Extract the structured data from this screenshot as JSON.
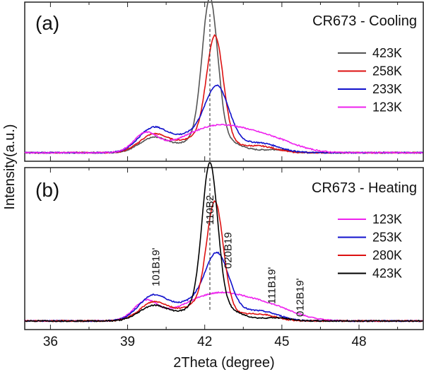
{
  "chart_data": [
    {
      "type": "line",
      "panel_label": "(a)",
      "title": "CR673 - Cooling",
      "legend_position": "right",
      "series": [
        {
          "name": "423K",
          "color": "#555555"
        },
        {
          "name": "258K",
          "color": "#dd1111"
        },
        {
          "name": "233K",
          "color": "#1111cc"
        },
        {
          "name": "123K",
          "color": "#ee22ee"
        }
      ],
      "reference_line_x": 42.2
    },
    {
      "type": "line",
      "panel_label": "(b)",
      "title": "CR673 - Heating",
      "legend_position": "right",
      "series": [
        {
          "name": "123K",
          "color": "#ee22ee"
        },
        {
          "name": "253K",
          "color": "#1111cc"
        },
        {
          "name": "280K",
          "color": "#dd1111"
        },
        {
          "name": "423K",
          "color": "#000000"
        }
      ],
      "reference_line_x": 42.2,
      "annotations": [
        {
          "text": "101B19'",
          "x": 40.1
        },
        {
          "text": "110B2",
          "x": 42.2
        },
        {
          "text": "020B19",
          "x": 42.9
        },
        {
          "text": "111B19'",
          "x": 44.6
        },
        {
          "text": "012B19'",
          "x": 45.7
        }
      ]
    }
  ],
  "axes": {
    "xlabel": "2Theta (degree)",
    "ylabel": "Intensity(a.u.)",
    "xlim": [
      35,
      50.5
    ],
    "xticks": [
      36,
      39,
      42,
      45,
      48
    ],
    "xtick_labels": [
      "36",
      "39",
      "42",
      "45",
      "48"
    ]
  }
}
